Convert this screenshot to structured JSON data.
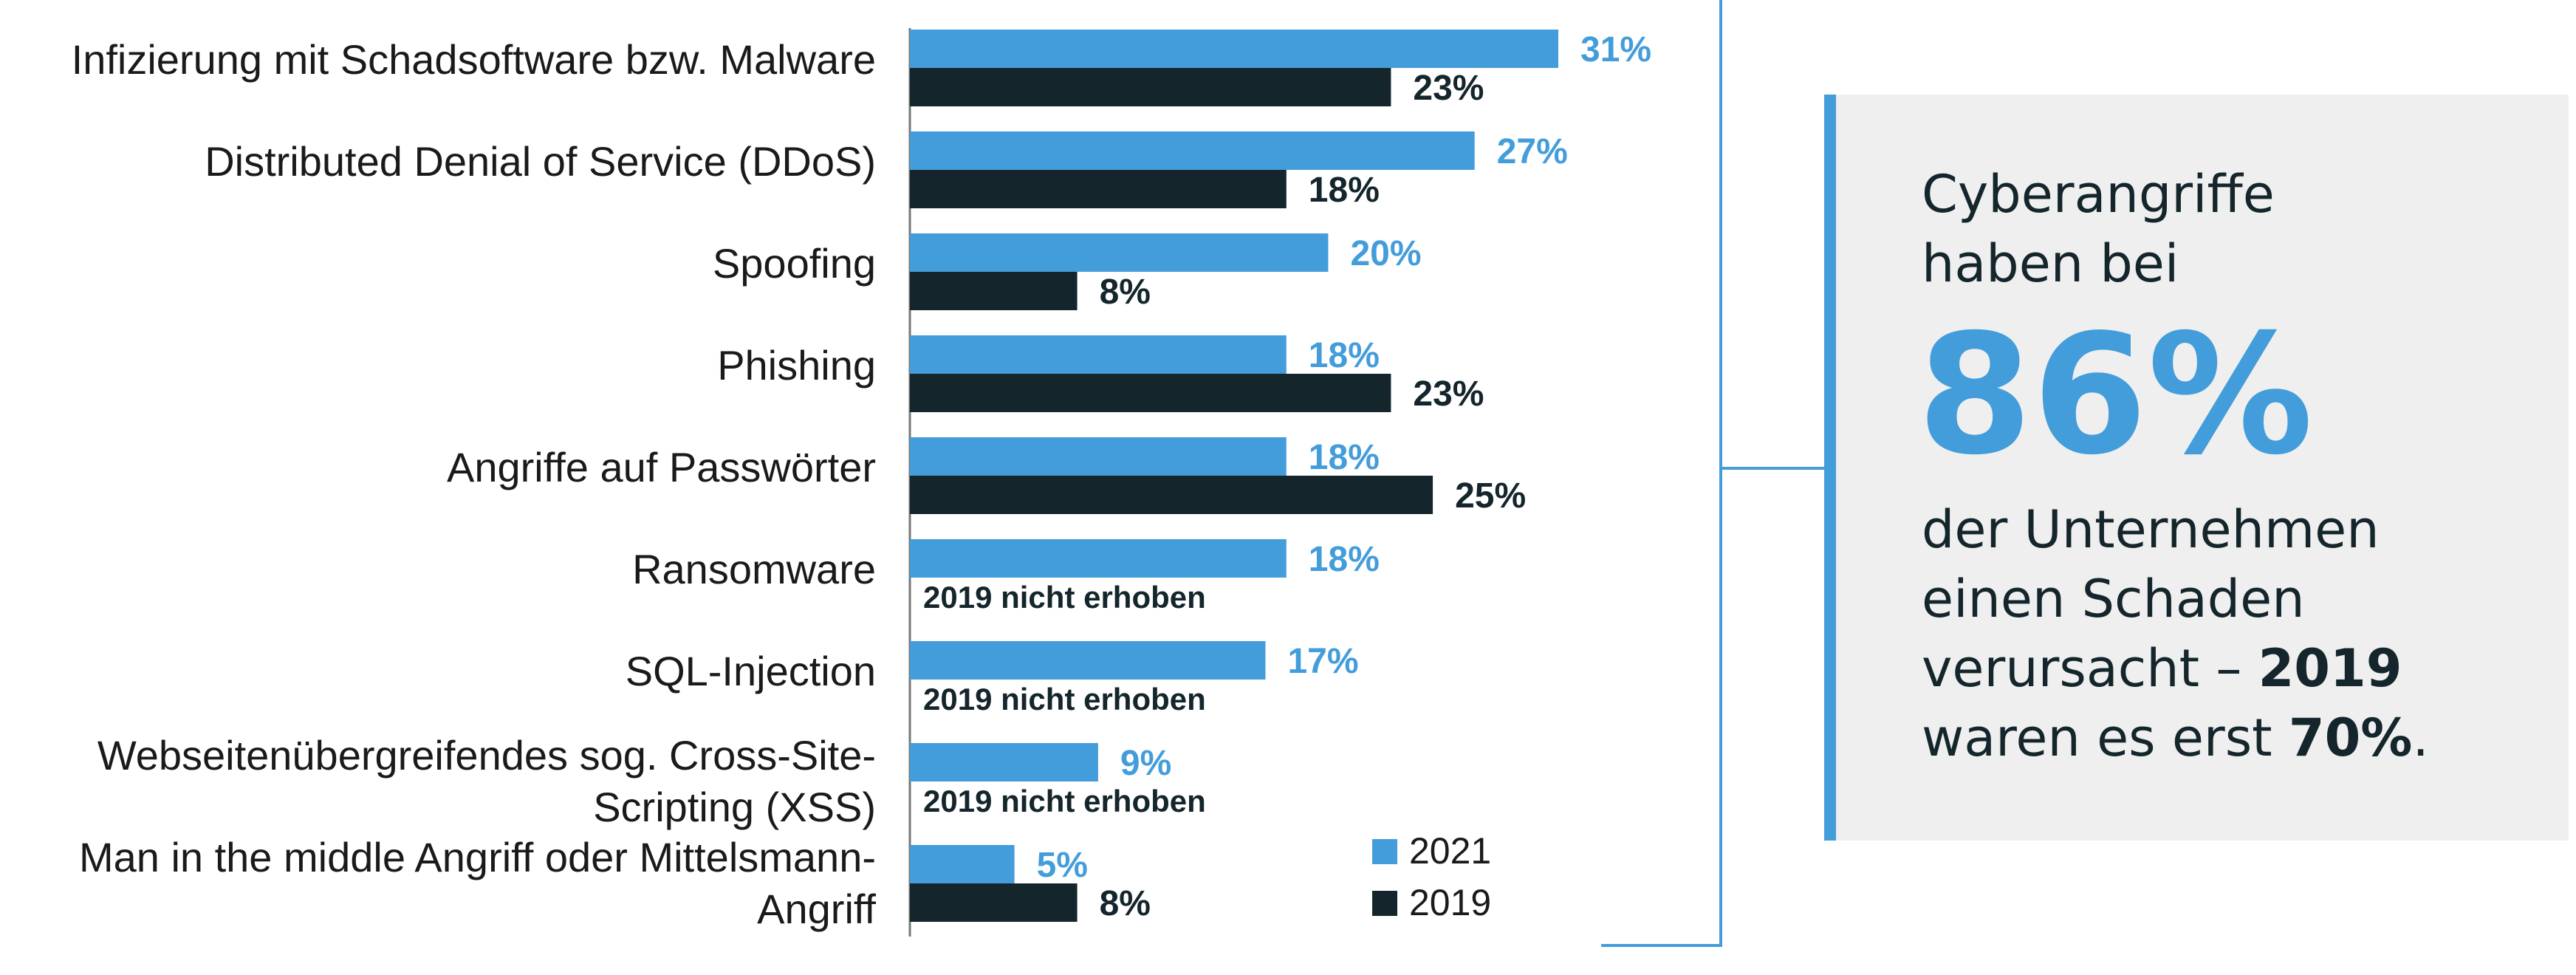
{
  "chart_data": {
    "type": "bar",
    "orientation": "horizontal",
    "categories": [
      "Infizierung mit Schadsoftware bzw. Malware",
      "Distributed Denial of Service (DDoS)",
      "Spoofing",
      "Phishing",
      "Angriffe auf Passwörter",
      "Ransomware",
      "SQL-Injection",
      "Webseitenübergreifendes sog. Cross-Site-Scripting (XSS)",
      "Man in the middle Angriff oder Mittelsmann-Angriff"
    ],
    "category_lines": [
      [
        "Infizierung mit Schadsoftware bzw. Malware"
      ],
      [
        "Distributed Denial of Service (DDoS)"
      ],
      [
        "Spoofing"
      ],
      [
        "Phishing"
      ],
      [
        "Angriffe auf Passwörter"
      ],
      [
        "Ransomware"
      ],
      [
        "SQL-Injection"
      ],
      [
        "Webseitenübergreifendes sog. Cross-Site-",
        "Scripting (XSS)"
      ],
      [
        "Man in the middle Angriff oder Mittelsmann-",
        "Angriff"
      ]
    ],
    "series": [
      {
        "name": "2021",
        "color": "#449ddb",
        "values": [
          31,
          27,
          20,
          18,
          18,
          18,
          17,
          9,
          5
        ]
      },
      {
        "name": "2019",
        "color": "#14262c",
        "values": [
          23,
          18,
          8,
          23,
          25,
          null,
          null,
          null,
          8
        ]
      }
    ],
    "value_suffix": "%",
    "missing_label": "2019 nicht erhoben",
    "xlim": [
      0,
      35
    ],
    "grid": false,
    "legend": {
      "position": "bottom-right",
      "entries": [
        "2021",
        "2019"
      ]
    }
  },
  "callout": {
    "line1": "Cyberangriffe",
    "line2": "haben bei",
    "big_value": "86%",
    "line3": "der Unternehmen",
    "line4": "einen Schaden",
    "line5_prefix": "verursacht – ",
    "line5_bold": "2019",
    "line6_prefix": "waren es erst ",
    "line6_bold": "70%",
    "line6_suffix": ".",
    "accent_color": "#449ddb"
  }
}
